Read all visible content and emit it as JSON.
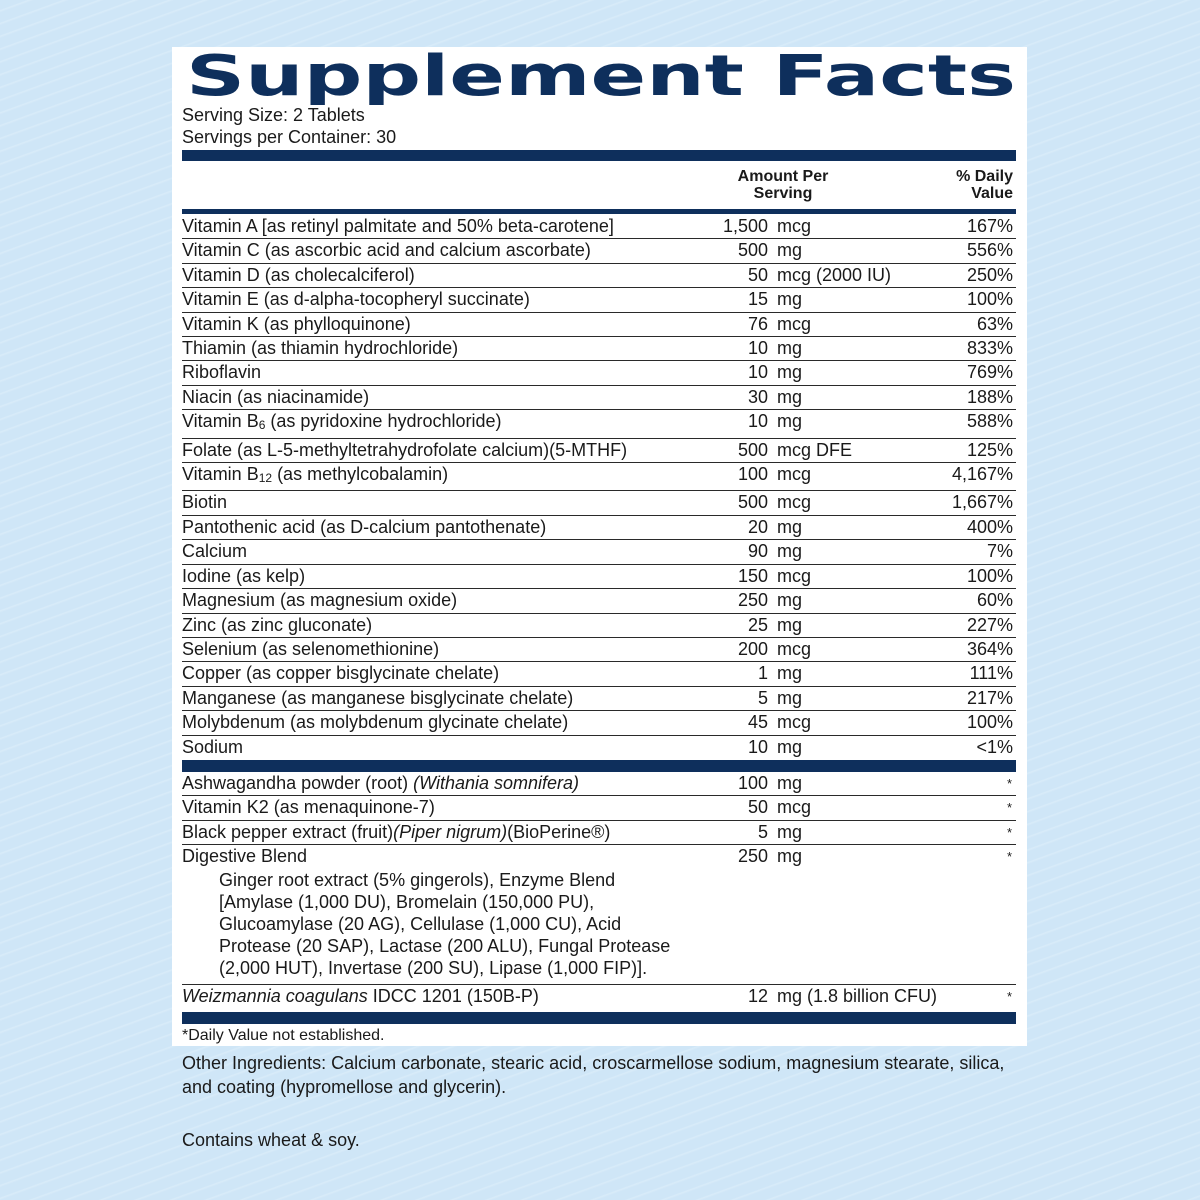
{
  "header": {
    "title": "Supplement Facts",
    "serving_size": "Serving Size: 2 Tablets",
    "servings_per_container": "Servings per Container: 30"
  },
  "table": {
    "columns": {
      "amount": "Amount Per Serving",
      "dv": "% Daily Value"
    },
    "sections": [
      {
        "rows": [
          {
            "name": "Vitamin A [as retinyl palmitate and 50% beta-carotene]",
            "amount": "1,500",
            "unit": "mcg",
            "dv": "167%"
          },
          {
            "name": "Vitamin C (as ascorbic acid and calcium ascorbate)",
            "amount": "500",
            "unit": "mg",
            "dv": "556%"
          },
          {
            "name": "Vitamin D (as cholecalciferol)",
            "amount": "50",
            "unit": "mcg (2000 IU)",
            "dv": "250%"
          },
          {
            "name": "Vitamin E (as d-alpha-tocopheryl succinate)",
            "amount": "15",
            "unit": "mg",
            "dv": "100%"
          },
          {
            "name": "Vitamin K (as phylloquinone)",
            "amount": "76",
            "unit": "mcg",
            "dv": "63%"
          },
          {
            "name": "Thiamin (as thiamin hydrochloride)",
            "amount": "10",
            "unit": "mg",
            "dv": "833%"
          },
          {
            "name": "Riboflavin",
            "amount": "10",
            "unit": "mg",
            "dv": "769%"
          },
          {
            "name": "Niacin (as niacinamide)",
            "amount": "30",
            "unit": "mg",
            "dv": "188%"
          },
          {
            "name": [
              {
                "text": "Vitamin B"
              },
              {
                "text": "6",
                "sub": true
              },
              {
                "text": " (as pyridoxine hydrochloride)"
              }
            ],
            "amount": "10",
            "unit": "mg",
            "dv": "588%"
          },
          {
            "name": "Folate (as L-5-methyltetrahydrofolate calcium)(5-MTHF)",
            "amount": "500",
            "unit": "mcg DFE",
            "dv": "125%"
          },
          {
            "name": [
              {
                "text": "Vitamin B"
              },
              {
                "text": "12",
                "sub": true
              },
              {
                "text": " (as methylcobalamin)"
              }
            ],
            "amount": "100",
            "unit": "mcg",
            "dv": "4,167%"
          },
          {
            "name": "Biotin",
            "amount": "500",
            "unit": "mcg",
            "dv": "1,667%"
          },
          {
            "name": "Pantothenic acid (as D-calcium pantothenate)",
            "amount": "20",
            "unit": "mg",
            "dv": "400%"
          },
          {
            "name": "Calcium",
            "amount": "90",
            "unit": "mg",
            "dv": "7%"
          },
          {
            "name": "Iodine (as kelp)",
            "amount": "150",
            "unit": "mcg",
            "dv": "100%"
          },
          {
            "name": "Magnesium (as magnesium oxide)",
            "amount": "250",
            "unit": "mg",
            "dv": "60%"
          },
          {
            "name": "Zinc (as zinc gluconate)",
            "amount": "25",
            "unit": "mg",
            "dv": "227%"
          },
          {
            "name": "Selenium (as selenomethionine)",
            "amount": "200",
            "unit": "mcg",
            "dv": "364%"
          },
          {
            "name": "Copper (as copper bisglycinate chelate)",
            "amount": "1",
            "unit": "mg",
            "dv": "111%"
          },
          {
            "name": "Manganese (as manganese bisglycinate chelate)",
            "amount": "5",
            "unit": "mg",
            "dv": "217%"
          },
          {
            "name": "Molybdenum (as molybdenum glycinate chelate)",
            "amount": "45",
            "unit": "mcg",
            "dv": "100%"
          },
          {
            "name": "Sodium",
            "amount": "10",
            "unit": "mg",
            "dv": "<1%"
          }
        ]
      },
      {
        "rows": [
          {
            "name": [
              {
                "text": "Ashwagandha powder (root) "
              },
              {
                "text": "(Withania somnifera)",
                "italic": true
              }
            ],
            "amount": "100",
            "unit": "mg",
            "dv": "*"
          },
          {
            "name": "Vitamin K2 (as menaquinone-7)",
            "amount": "50",
            "unit": "mcg",
            "dv": "*"
          },
          {
            "name": [
              {
                "text": "Black pepper extract (fruit)"
              },
              {
                "text": "(Piper nigrum)",
                "italic": true
              },
              {
                "text": "(BioPerine®)"
              }
            ],
            "amount": "5",
            "unit": "mg",
            "dv": "*"
          },
          {
            "name": "Digestive Blend",
            "amount": "250",
            "unit": "mg",
            "dv": "*",
            "detail": "Ginger root extract (5% gingerols), Enzyme Blend [Amylase (1,000 DU), Bromelain (150,000 PU), Glucoamylase (20 AG), Cellulase (1,000 CU), Acid Protease (20 SAP), Lactase (200 ALU), Fungal Protease (2,000 HUT), Invertase (200 SU), Lipase (1,000 FIP)]."
          },
          {
            "name": [
              {
                "text": "Weizmannia coagulans",
                "italic": true
              },
              {
                "text": " IDCC 1201 (150B-P)"
              }
            ],
            "amount": "12",
            "unit": "mg (1.8 billion CFU)",
            "dv": "*"
          }
        ]
      }
    ],
    "footnote": "*Daily Value not established."
  },
  "other_ingredients": "Other Ingredients: Calcium carbonate, stearic acid, croscarmellose sodium, magnesium stearate, silica, and coating  (hypromellose and glycerin).",
  "allergens": "Contains wheat & soy."
}
